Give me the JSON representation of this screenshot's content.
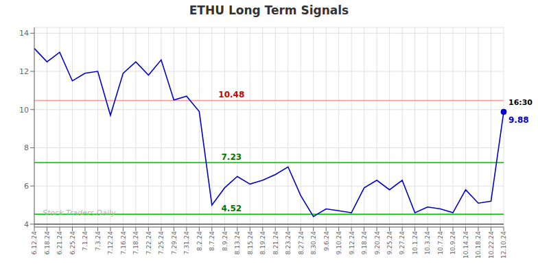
{
  "chart_data": {
    "type": "line",
    "title": "ETHU Long Term Signals",
    "categories": [
      "6.12.24",
      "6.18.24",
      "6.21.24",
      "6.25.24",
      "7.1.24",
      "7.3.24",
      "7.12.24",
      "7.16.24",
      "7.18.24",
      "7.22.24",
      "7.25.24",
      "7.29.24",
      "7.31.24",
      "8.2.24",
      "8.7.24",
      "8.9.24",
      "8.13.24",
      "8.15.24",
      "8.19.24",
      "8.21.24",
      "8.23.24",
      "8.27.24",
      "8.30.24",
      "9.6.24",
      "9.10.24",
      "9.12.24",
      "9.18.24",
      "9.20.24",
      "9.25.24",
      "9.27.24",
      "10.1.24",
      "10.3.24",
      "10.7.24",
      "10.9.24",
      "10.14.24",
      "10.18.24",
      "10.22.24",
      "12.10.24"
    ],
    "values": [
      13.2,
      12.5,
      13.0,
      11.5,
      11.9,
      12.0,
      9.7,
      11.9,
      12.5,
      11.8,
      12.6,
      10.5,
      10.7,
      9.9,
      5.0,
      5.9,
      6.5,
      6.1,
      6.3,
      6.6,
      7.0,
      5.5,
      4.4,
      4.8,
      4.7,
      4.6,
      5.9,
      6.3,
      5.8,
      6.3,
      4.6,
      4.9,
      4.8,
      4.6,
      5.8,
      5.1,
      5.2,
      9.88
    ],
    "color": "#0000cc",
    "ylim": [
      3.85,
      14.3
    ],
    "yticks": [
      4,
      6,
      8,
      10,
      12,
      14
    ],
    "grid": true,
    "hlines": [
      {
        "value": 10.48,
        "color": "#ff9999",
        "label": "10.48",
        "label_color": "#cc0000"
      },
      {
        "value": 7.23,
        "color": "#00bb00",
        "label": "7.23",
        "label_color": "#007700"
      },
      {
        "value": 4.52,
        "color": "#00bb00",
        "label": "4.52",
        "label_color": "#007700"
      },
      {
        "value": 4.0,
        "color": "#555555"
      }
    ],
    "last_point": {
      "time_label": "16:30",
      "time_color": "#000000",
      "price_label": "9.88",
      "color": "#0000cc"
    },
    "watermark": "Stock Traders Daily",
    "watermark_color": "#b0b0b0"
  }
}
